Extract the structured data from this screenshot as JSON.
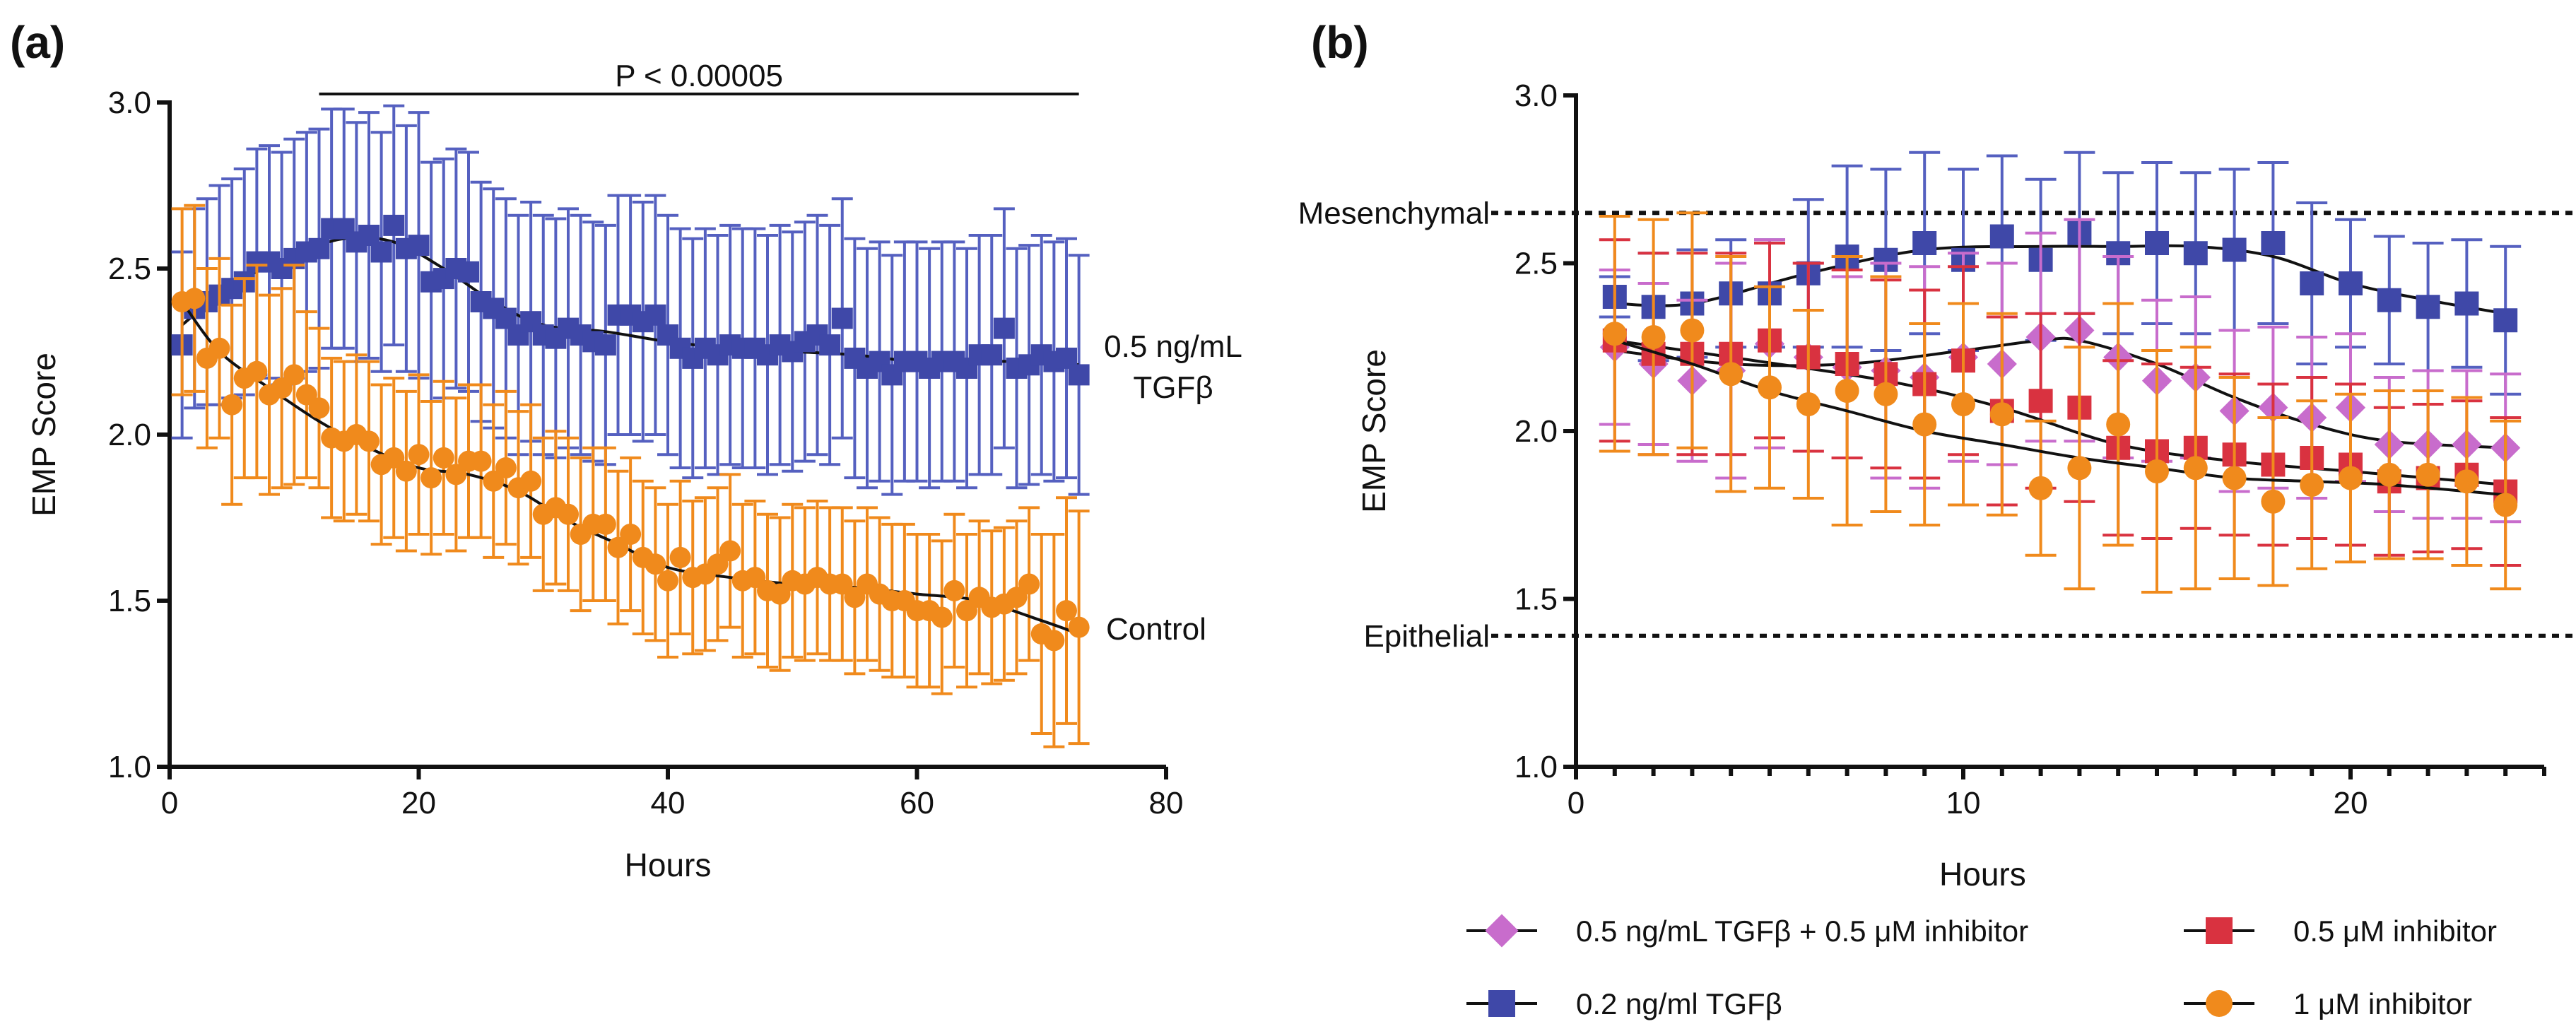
{
  "chart_data": [
    {
      "type": "scatter",
      "panel_label": "(a)",
      "title": "",
      "xlabel": "Hours",
      "ylabel": "EMP Score",
      "xlim": [
        0,
        80
      ],
      "ylim": [
        1.0,
        3.0
      ],
      "xticks": [
        0,
        20,
        40,
        60,
        80
      ],
      "yticks": [
        1.0,
        1.5,
        2.0,
        2.5,
        3.0
      ],
      "xtick_labels": [
        "0",
        "20",
        "40",
        "60",
        "80"
      ],
      "ytick_labels": [
        "1.0",
        "1.5",
        "2.0",
        "2.5",
        "3.0"
      ],
      "grid": false,
      "significance": {
        "label": "P < 0.00005",
        "x_start": 12,
        "x_end": 73
      },
      "series": [
        {
          "name": "0.5 ng/mL TGFβ",
          "label_line1": "0.5 ng/mL",
          "label_line2": "TGFβ",
          "color": "#3f48a8",
          "errorbar_color": "#5560c0",
          "marker": "square",
          "x": [
            1,
            2,
            3,
            4,
            5,
            6,
            7,
            8,
            9,
            10,
            11,
            12,
            13,
            14,
            15,
            16,
            17,
            18,
            19,
            20,
            21,
            22,
            23,
            24,
            25,
            26,
            27,
            28,
            29,
            30,
            31,
            32,
            33,
            34,
            35,
            36,
            37,
            38,
            39,
            40,
            41,
            42,
            43,
            44,
            45,
            46,
            47,
            48,
            49,
            50,
            51,
            52,
            53,
            54,
            55,
            56,
            57,
            58,
            59,
            60,
            61,
            62,
            63,
            64,
            65,
            66,
            67,
            68,
            69,
            70,
            71,
            72,
            73
          ],
          "y": [
            2.27,
            2.38,
            2.4,
            2.42,
            2.44,
            2.46,
            2.52,
            2.52,
            2.5,
            2.53,
            2.55,
            2.56,
            2.62,
            2.62,
            2.58,
            2.6,
            2.55,
            2.63,
            2.56,
            2.57,
            2.46,
            2.47,
            2.5,
            2.49,
            2.4,
            2.38,
            2.35,
            2.3,
            2.34,
            2.3,
            2.29,
            2.32,
            2.3,
            2.28,
            2.27,
            2.36,
            2.36,
            2.34,
            2.36,
            2.3,
            2.26,
            2.23,
            2.26,
            2.24,
            2.27,
            2.26,
            2.26,
            2.24,
            2.27,
            2.25,
            2.28,
            2.3,
            2.27,
            2.35,
            2.23,
            2.2,
            2.22,
            2.18,
            2.22,
            2.22,
            2.2,
            2.22,
            2.22,
            2.2,
            2.24,
            2.24,
            2.32,
            2.2,
            2.21,
            2.24,
            2.22,
            2.23,
            2.18
          ],
          "err": [
            0.28,
            0.3,
            0.31,
            0.33,
            0.33,
            0.34,
            0.34,
            0.35,
            0.35,
            0.36,
            0.36,
            0.36,
            0.36,
            0.36,
            0.36,
            0.37,
            0.36,
            0.36,
            0.37,
            0.4,
            0.36,
            0.36,
            0.36,
            0.36,
            0.36,
            0.36,
            0.36,
            0.36,
            0.36,
            0.36,
            0.36,
            0.36,
            0.36,
            0.36,
            0.36,
            0.36,
            0.36,
            0.36,
            0.36,
            0.36,
            0.36,
            0.36,
            0.36,
            0.36,
            0.36,
            0.36,
            0.36,
            0.36,
            0.36,
            0.36,
            0.36,
            0.36,
            0.36,
            0.36,
            0.36,
            0.36,
            0.36,
            0.36,
            0.36,
            0.36,
            0.36,
            0.36,
            0.36,
            0.36,
            0.36,
            0.36,
            0.36,
            0.36,
            0.36,
            0.36,
            0.36,
            0.36,
            0.36
          ],
          "trend_x": [
            1,
            5,
            10,
            14,
            18,
            22,
            26,
            30,
            35,
            40,
            45,
            50,
            55,
            60,
            65,
            70,
            73
          ],
          "trend_y": [
            2.33,
            2.45,
            2.54,
            2.59,
            2.58,
            2.5,
            2.4,
            2.33,
            2.31,
            2.28,
            2.26,
            2.25,
            2.24,
            2.22,
            2.22,
            2.22,
            2.21
          ]
        },
        {
          "name": "Control",
          "label_line1": "Control",
          "label_line2": "",
          "color": "#f08a1c",
          "errorbar_color": "#f08a1c",
          "marker": "circle",
          "x": [
            1,
            2,
            3,
            4,
            5,
            6,
            7,
            8,
            9,
            10,
            11,
            12,
            13,
            14,
            15,
            16,
            17,
            18,
            19,
            20,
            21,
            22,
            23,
            24,
            25,
            26,
            27,
            28,
            29,
            30,
            31,
            32,
            33,
            34,
            35,
            36,
            37,
            38,
            39,
            40,
            41,
            42,
            43,
            44,
            45,
            46,
            47,
            48,
            49,
            50,
            51,
            52,
            53,
            54,
            55,
            56,
            57,
            58,
            59,
            60,
            61,
            62,
            63,
            64,
            65,
            66,
            67,
            68,
            69,
            70,
            71,
            72,
            73
          ],
          "y": [
            2.4,
            2.41,
            2.23,
            2.26,
            2.09,
            2.17,
            2.19,
            2.12,
            2.14,
            2.18,
            2.12,
            2.08,
            1.99,
            1.98,
            2.0,
            1.98,
            1.91,
            1.93,
            1.89,
            1.94,
            1.87,
            1.93,
            1.88,
            1.92,
            1.92,
            1.86,
            1.9,
            1.84,
            1.86,
            1.76,
            1.78,
            1.76,
            1.7,
            1.73,
            1.73,
            1.66,
            1.7,
            1.63,
            1.61,
            1.56,
            1.63,
            1.57,
            1.58,
            1.61,
            1.65,
            1.56,
            1.57,
            1.53,
            1.52,
            1.56,
            1.55,
            1.57,
            1.55,
            1.55,
            1.51,
            1.55,
            1.52,
            1.5,
            1.5,
            1.47,
            1.47,
            1.45,
            1.53,
            1.47,
            1.51,
            1.48,
            1.49,
            1.51,
            1.55,
            1.4,
            1.38,
            1.47,
            1.42
          ],
          "err": [
            0.28,
            0.28,
            0.27,
            0.27,
            0.3,
            0.3,
            0.32,
            0.3,
            0.3,
            0.33,
            0.25,
            0.24,
            0.24,
            0.24,
            0.24,
            0.24,
            0.24,
            0.24,
            0.24,
            0.24,
            0.23,
            0.23,
            0.23,
            0.23,
            0.23,
            0.23,
            0.23,
            0.23,
            0.23,
            0.23,
            0.23,
            0.23,
            0.23,
            0.23,
            0.23,
            0.23,
            0.23,
            0.23,
            0.23,
            0.23,
            0.23,
            0.23,
            0.23,
            0.23,
            0.23,
            0.23,
            0.23,
            0.23,
            0.23,
            0.23,
            0.23,
            0.23,
            0.23,
            0.23,
            0.23,
            0.23,
            0.23,
            0.23,
            0.23,
            0.23,
            0.23,
            0.23,
            0.23,
            0.23,
            0.23,
            0.23,
            0.23,
            0.23,
            0.23,
            0.3,
            0.32,
            0.34,
            0.35
          ],
          "trend_x": [
            1,
            4,
            8,
            12,
            16,
            20,
            24,
            28,
            32,
            36,
            40,
            45,
            50,
            55,
            60,
            65,
            70,
            73
          ],
          "trend_y": [
            2.4,
            2.25,
            2.14,
            2.04,
            1.96,
            1.9,
            1.88,
            1.83,
            1.74,
            1.67,
            1.6,
            1.57,
            1.55,
            1.54,
            1.52,
            1.5,
            1.44,
            1.4
          ]
        }
      ]
    },
    {
      "type": "scatter",
      "panel_label": "(b)",
      "title": "",
      "xlabel": "Hours",
      "ylabel": "EMP Score",
      "xlim": [
        0,
        25
      ],
      "ylim": [
        1.0,
        3.0
      ],
      "xticks": [
        0,
        10,
        20
      ],
      "yticks": [
        1.0,
        1.5,
        2.0,
        2.5,
        3.0
      ],
      "xtick_labels": [
        "0",
        "10",
        "20"
      ],
      "ytick_labels": [
        "1.0",
        "1.5",
        "2.0",
        "2.5",
        "3.0"
      ],
      "grid": false,
      "reference_lines": [
        {
          "label": "Mesenchymal",
          "y": 2.65
        },
        {
          "label": "Epithelial",
          "y": 1.39
        }
      ],
      "legend_position": "bottom",
      "series": [
        {
          "name": "0.5 ng/mL TGFβ + 0.5 μM inhibitor",
          "color": "#c86ccc",
          "marker": "diamond",
          "x": [
            1,
            2,
            3,
            4,
            5,
            6,
            7,
            8,
            9,
            10,
            11,
            12,
            13,
            14,
            15,
            16,
            17,
            18,
            19,
            20,
            21,
            22,
            23,
            24
          ],
          "y": [
            2.25,
            2.2,
            2.15,
            2.18,
            2.26,
            2.22,
            2.19,
            2.18,
            2.16,
            2.22,
            2.2,
            2.28,
            2.3,
            2.22,
            2.15,
            2.16,
            2.06,
            2.07,
            2.04,
            2.07,
            1.96,
            1.96,
            1.96,
            1.95
          ],
          "err": [
            0.23,
            0.24,
            0.24,
            0.32,
            0.31,
            0.28,
            0.27,
            0.32,
            0.33,
            0.31,
            0.3,
            0.31,
            0.33,
            0.3,
            0.24,
            0.24,
            0.24,
            0.24,
            0.24,
            0.22,
            0.2,
            0.22,
            0.22,
            0.22
          ],
          "trend_x": [
            1,
            4,
            7,
            10,
            12,
            13,
            15,
            17,
            19,
            21,
            24
          ],
          "trend_y": [
            2.24,
            2.2,
            2.2,
            2.24,
            2.27,
            2.27,
            2.2,
            2.1,
            2.02,
            1.97,
            1.95
          ]
        },
        {
          "name": "0.5 μM inhibitor",
          "color": "#d93240",
          "marker": "square",
          "x": [
            1,
            2,
            3,
            4,
            5,
            6,
            7,
            8,
            9,
            10,
            11,
            12,
            13,
            14,
            15,
            16,
            17,
            18,
            19,
            20,
            21,
            22,
            23,
            24
          ],
          "y": [
            2.27,
            2.23,
            2.23,
            2.23,
            2.27,
            2.22,
            2.2,
            2.17,
            2.14,
            2.21,
            2.06,
            2.09,
            2.07,
            1.95,
            1.94,
            1.95,
            1.93,
            1.9,
            1.92,
            1.9,
            1.85,
            1.86,
            1.87,
            1.82
          ],
          "err": [
            0.3,
            0.3,
            0.3,
            0.3,
            0.29,
            0.28,
            0.28,
            0.28,
            0.28,
            0.28,
            0.28,
            0.26,
            0.28,
            0.26,
            0.26,
            0.24,
            0.24,
            0.24,
            0.24,
            0.24,
            0.22,
            0.22,
            0.22,
            0.22
          ],
          "trend_x": [
            1,
            4,
            8,
            11,
            14,
            17,
            20,
            24
          ],
          "trend_y": [
            2.27,
            2.22,
            2.15,
            2.07,
            1.96,
            1.91,
            1.88,
            1.84
          ]
        },
        {
          "name": "0.2 ng/ml TGFβ",
          "color": "#3f48a8",
          "errorbar_color": "#5560c0",
          "marker": "square",
          "x": [
            1,
            2,
            3,
            4,
            5,
            6,
            7,
            8,
            9,
            10,
            11,
            12,
            13,
            14,
            15,
            16,
            17,
            18,
            19,
            20,
            21,
            22,
            23,
            24
          ],
          "y": [
            2.4,
            2.37,
            2.38,
            2.41,
            2.41,
            2.47,
            2.52,
            2.51,
            2.56,
            2.51,
            2.58,
            2.51,
            2.59,
            2.53,
            2.56,
            2.53,
            2.54,
            2.56,
            2.44,
            2.44,
            2.39,
            2.37,
            2.38,
            2.33
          ],
          "err": [
            0.06,
            0.16,
            0.16,
            0.16,
            0.16,
            0.22,
            0.27,
            0.27,
            0.27,
            0.27,
            0.24,
            0.24,
            0.24,
            0.24,
            0.24,
            0.24,
            0.24,
            0.24,
            0.24,
            0.19,
            0.19,
            0.19,
            0.19,
            0.22
          ],
          "trend_x": [
            1,
            3,
            6,
            9,
            12,
            14,
            16,
            18,
            20,
            22,
            24
          ],
          "trend_y": [
            2.38,
            2.38,
            2.47,
            2.54,
            2.55,
            2.55,
            2.55,
            2.52,
            2.44,
            2.39,
            2.35
          ]
        },
        {
          "name": "1 μM inhibitor",
          "color": "#f08a1c",
          "marker": "circle",
          "x": [
            1,
            2,
            3,
            4,
            5,
            6,
            7,
            8,
            9,
            10,
            11,
            12,
            13,
            14,
            15,
            16,
            17,
            18,
            19,
            20,
            21,
            22,
            23,
            24
          ],
          "y": [
            2.29,
            2.28,
            2.3,
            2.17,
            2.13,
            2.08,
            2.12,
            2.11,
            2.02,
            2.08,
            2.05,
            1.83,
            1.89,
            2.02,
            1.88,
            1.89,
            1.86,
            1.79,
            1.84,
            1.86,
            1.87,
            1.87,
            1.85,
            1.78
          ],
          "err": [
            0.35,
            0.35,
            0.35,
            0.35,
            0.3,
            0.28,
            0.4,
            0.35,
            0.3,
            0.3,
            0.3,
            0.2,
            0.36,
            0.36,
            0.36,
            0.36,
            0.3,
            0.25,
            0.25,
            0.25,
            0.25,
            0.25,
            0.25,
            0.25
          ],
          "trend_x": [
            1,
            3,
            5,
            7,
            9,
            11,
            13,
            15,
            17,
            19,
            21,
            24
          ],
          "trend_y": [
            2.27,
            2.2,
            2.12,
            2.06,
            2.0,
            1.96,
            1.92,
            1.89,
            1.86,
            1.85,
            1.84,
            1.81
          ]
        }
      ]
    }
  ]
}
